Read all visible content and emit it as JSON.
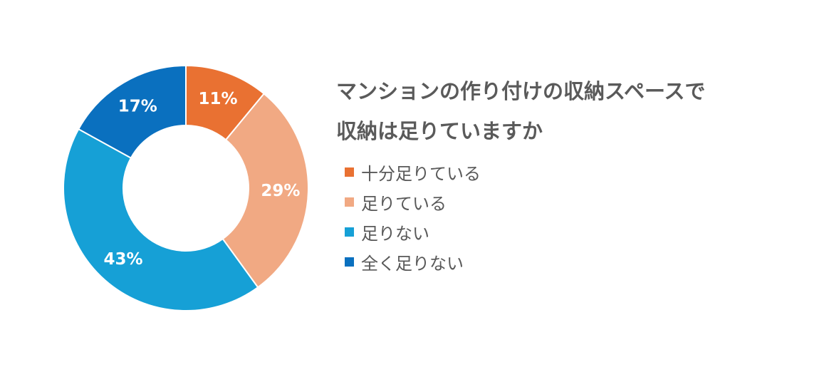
{
  "chart_data": {
    "type": "pie",
    "title_lines": [
      "マンションの作り付けの収納スペースで",
      "収納は足りていますか"
    ],
    "categories": [
      "十分足りている",
      "足りている",
      "足りない",
      "全く足りない"
    ],
    "values": [
      11,
      29,
      43,
      17
    ],
    "labels": [
      "11%",
      "29%",
      "43%",
      "17%"
    ],
    "colors": [
      "#e97132",
      "#f1a983",
      "#16a0d6",
      "#0a70bf"
    ],
    "unit": "%",
    "donut": true,
    "legend_position": "right"
  }
}
